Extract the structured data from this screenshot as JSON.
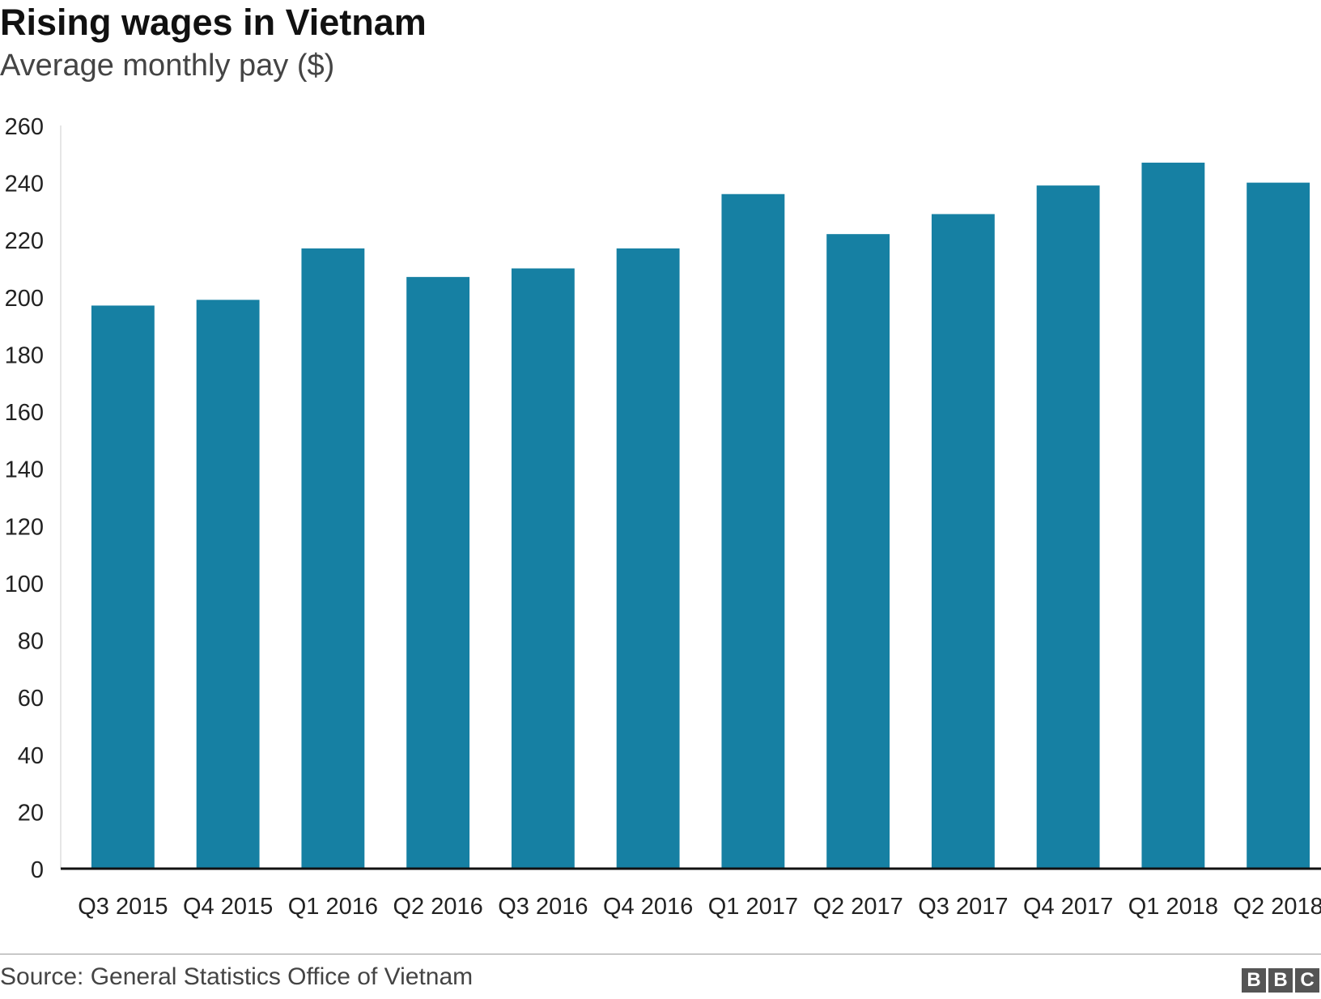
{
  "header": {
    "title": "Rising wages in Vietnam",
    "subtitle": "Average monthly pay ($)"
  },
  "footer": {
    "source": "Source: General Statistics Office of Vietnam",
    "logo_letters": [
      "B",
      "B",
      "C"
    ]
  },
  "colors": {
    "bar": "#1680a3",
    "axis": "#111111",
    "grid": "#cccccc"
  },
  "chart_data": {
    "type": "bar",
    "title": "Rising wages in Vietnam",
    "subtitle": "Average monthly pay ($)",
    "categories": [
      "Q3 2015",
      "Q4 2015",
      "Q1 2016",
      "Q2 2016",
      "Q3 2016",
      "Q4 2016",
      "Q1 2017",
      "Q2 2017",
      "Q3 2017",
      "Q4 2017",
      "Q1 2018",
      "Q2 2018"
    ],
    "values": [
      197,
      199,
      217,
      207,
      210,
      217,
      236,
      222,
      229,
      239,
      247,
      240
    ],
    "ylim": [
      0,
      260
    ],
    "yticks": [
      0,
      20,
      40,
      60,
      80,
      100,
      120,
      140,
      160,
      180,
      200,
      220,
      240,
      260
    ],
    "xlabel": "",
    "ylabel": "",
    "grid": false,
    "legend": "none"
  }
}
